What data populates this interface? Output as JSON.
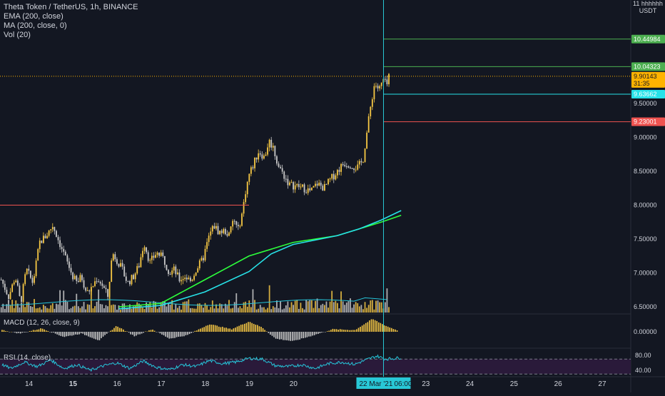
{
  "header": {
    "symbol_line": "Theta Token / TetherUS, 1h, BINANCE",
    "indicators": [
      "EMA (200, close)",
      "MA (200, close, 0)",
      "Vol (20)"
    ],
    "currency_top": "11 hhhhhh",
    "currency": "USDT"
  },
  "colors": {
    "background": "#131722",
    "up": "#f7c844",
    "down": "#c9c9c9",
    "ema": "#2dff3c",
    "ma": "#27e2e8",
    "cursor": "#28c8d6",
    "resistance": "#ef5350",
    "level_green": "#4caf50",
    "last_price": "#ffb300",
    "rsi_line": "#26c6da",
    "rsi_band": "#2a1a3a"
  },
  "chart_data": [
    {
      "type": "candlestick",
      "title": "Theta Token / TetherUS, 1h, BINANCE",
      "x_tick_labels": [
        "14",
        "15",
        "16",
        "17",
        "18",
        "19",
        "20",
        "22 Mar '21",
        "06:00",
        "23",
        "24",
        "25",
        "26",
        "27"
      ],
      "y_ticks": [
        "6.50000",
        "7.00000",
        "7.50000",
        "8.00000",
        "8.50000",
        "9.00000",
        "9.50000"
      ],
      "ylim": [
        6.42,
        10.9
      ],
      "close_path": [
        [
          13.38,
          6.9
        ],
        [
          13.55,
          6.65
        ],
        [
          13.7,
          6.95
        ],
        [
          13.82,
          6.55
        ],
        [
          13.95,
          7.05
        ],
        [
          14.1,
          6.85
        ],
        [
          14.25,
          7.45
        ],
        [
          14.4,
          7.55
        ],
        [
          14.55,
          7.7
        ],
        [
          14.7,
          7.45
        ],
        [
          14.85,
          7.2
        ],
        [
          15.0,
          6.95
        ],
        [
          15.1,
          6.85
        ],
        [
          15.2,
          6.95
        ],
        [
          15.32,
          6.7
        ],
        [
          15.45,
          6.8
        ],
        [
          15.55,
          6.92
        ],
        [
          15.65,
          6.85
        ],
        [
          15.8,
          6.65
        ],
        [
          15.9,
          7.3
        ],
        [
          16.0,
          7.2
        ],
        [
          16.12,
          7.05
        ],
        [
          16.25,
          6.85
        ],
        [
          16.38,
          6.95
        ],
        [
          16.5,
          7.1
        ],
        [
          16.62,
          7.45
        ],
        [
          16.75,
          7.15
        ],
        [
          16.9,
          7.3
        ],
        [
          17.05,
          7.22
        ],
        [
          17.2,
          7.0
        ],
        [
          17.3,
          7.05
        ],
        [
          17.42,
          6.9
        ],
        [
          17.55,
          6.95
        ],
        [
          17.68,
          6.88
        ],
        [
          17.8,
          7.05
        ],
        [
          17.95,
          7.2
        ],
        [
          18.1,
          7.55
        ],
        [
          18.2,
          7.7
        ],
        [
          18.32,
          7.6
        ],
        [
          18.45,
          7.62
        ],
        [
          18.55,
          7.55
        ],
        [
          18.65,
          7.8
        ],
        [
          18.75,
          7.62
        ],
        [
          18.85,
          7.9
        ],
        [
          18.92,
          8.2
        ],
        [
          19.0,
          8.45
        ],
        [
          19.1,
          8.6
        ],
        [
          19.22,
          8.8
        ],
        [
          19.35,
          8.7
        ],
        [
          19.45,
          8.95
        ],
        [
          19.55,
          8.85
        ],
        [
          19.65,
          8.6
        ],
        [
          19.78,
          8.45
        ],
        [
          19.92,
          8.3
        ],
        [
          20.08,
          8.28
        ],
        [
          20.25,
          8.25
        ],
        [
          20.4,
          8.2
        ],
        [
          20.55,
          8.32
        ],
        [
          20.7,
          8.25
        ],
        [
          20.85,
          8.38
        ],
        [
          21.0,
          8.5
        ],
        [
          21.15,
          8.62
        ],
        [
          21.3,
          8.6
        ],
        [
          21.45,
          8.55
        ],
        [
          21.58,
          8.65
        ],
        [
          21.7,
          9.2
        ],
        [
          21.78,
          9.55
        ],
        [
          21.85,
          9.8
        ],
        [
          21.95,
          9.7
        ],
        [
          22.05,
          9.85
        ],
        [
          22.12,
          9.75
        ],
        [
          22.18,
          9.9
        ]
      ],
      "series": [
        {
          "name": "EMA (200, close)",
          "points": [
            [
              16.05,
              6.5
            ],
            [
              17.0,
              6.55
            ],
            [
              18.0,
              6.9
            ],
            [
              19.0,
              7.25
            ],
            [
              20.0,
              7.45
            ],
            [
              21.0,
              7.55
            ],
            [
              21.5,
              7.65
            ],
            [
              22.0,
              7.75
            ],
            [
              22.45,
              7.85
            ]
          ]
        },
        {
          "name": "MA (200, close, 0)",
          "points": [
            [
              16.05,
              6.47
            ],
            [
              17.0,
              6.52
            ],
            [
              18.0,
              6.72
            ],
            [
              19.0,
              7.02
            ],
            [
              19.5,
              7.28
            ],
            [
              20.0,
              7.42
            ],
            [
              21.0,
              7.55
            ],
            [
              21.5,
              7.65
            ],
            [
              22.0,
              7.78
            ],
            [
              22.45,
              7.92
            ]
          ]
        }
      ],
      "price_levels": [
        {
          "value": 10.44984,
          "label": "10.44984",
          "color": "#4caf50"
        },
        {
          "value": 10.04323,
          "label": "10.04323",
          "color": "#4caf50"
        },
        {
          "value": 9.90143,
          "label": "9.90143",
          "sublabel": "31:35",
          "color": "#ffb300"
        },
        {
          "value": 9.63662,
          "label": "9.63662",
          "color": "#27e2e8"
        },
        {
          "value": 9.23001,
          "label": "9.23001",
          "color": "#ef5350"
        },
        {
          "value": 8.0,
          "label": "",
          "color": "#ef5350"
        }
      ]
    },
    {
      "type": "bar",
      "title": "MACD (12, 26, close, 9)",
      "y_ticks": [
        "0.00000"
      ],
      "histogram_path": [
        [
          13.4,
          0.02
        ],
        [
          13.8,
          -0.02
        ],
        [
          14.3,
          0.04
        ],
        [
          14.8,
          -0.06
        ],
        [
          15.2,
          -0.02
        ],
        [
          15.6,
          -0.1
        ],
        [
          16.0,
          0.07
        ],
        [
          16.4,
          -0.05
        ],
        [
          16.8,
          0.03
        ],
        [
          17.2,
          -0.08
        ],
        [
          17.6,
          -0.04
        ],
        [
          18.1,
          0.09
        ],
        [
          18.6,
          0.03
        ],
        [
          19.0,
          0.12
        ],
        [
          19.3,
          0.05
        ],
        [
          19.6,
          -0.08
        ],
        [
          20.0,
          -0.11
        ],
        [
          20.4,
          -0.05
        ],
        [
          20.9,
          0.03
        ],
        [
          21.4,
          0.02
        ],
        [
          21.8,
          0.15
        ],
        [
          22.1,
          0.07
        ],
        [
          22.4,
          0.01
        ]
      ]
    },
    {
      "type": "line",
      "title": "RSI (14, close)",
      "y_ticks": [
        "80.00",
        "40.00"
      ],
      "values_path": [
        [
          13.4,
          55
        ],
        [
          13.6,
          45
        ],
        [
          13.9,
          62
        ],
        [
          14.2,
          50
        ],
        [
          14.5,
          68
        ],
        [
          14.8,
          45
        ],
        [
          15.1,
          55
        ],
        [
          15.4,
          40
        ],
        [
          15.7,
          52
        ],
        [
          16.0,
          60
        ],
        [
          16.3,
          45
        ],
        [
          16.6,
          65
        ],
        [
          16.9,
          48
        ],
        [
          17.2,
          42
        ],
        [
          17.5,
          55
        ],
        [
          17.8,
          50
        ],
        [
          18.1,
          66
        ],
        [
          18.4,
          58
        ],
        [
          18.7,
          62
        ],
        [
          19.0,
          72
        ],
        [
          19.3,
          70
        ],
        [
          19.6,
          52
        ],
        [
          19.9,
          50
        ],
        [
          20.2,
          55
        ],
        [
          20.5,
          45
        ],
        [
          20.8,
          58
        ],
        [
          21.1,
          62
        ],
        [
          21.4,
          56
        ],
        [
          21.7,
          70
        ],
        [
          21.9,
          78
        ],
        [
          22.1,
          70
        ],
        [
          22.3,
          72
        ],
        [
          22.45,
          74
        ]
      ],
      "levels": [
        70,
        30
      ]
    }
  ]
}
